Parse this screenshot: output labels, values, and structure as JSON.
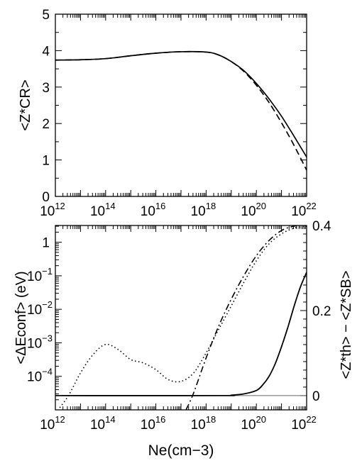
{
  "chart_data": [
    {
      "type": "line",
      "panel": "top",
      "ylabel": "<Z*CR>",
      "ylim": [
        0,
        5
      ],
      "yticks": [
        "0",
        "1",
        "2",
        "3",
        "4",
        "5"
      ],
      "xscale": "log",
      "xlim_exp": [
        12,
        22
      ],
      "xticks": [
        "10",
        "10",
        "10",
        "10",
        "10",
        "10"
      ],
      "xtick_exponents": [
        "12",
        "14",
        "16",
        "18",
        "20",
        "22"
      ],
      "series": [
        {
          "style": "solid",
          "x_exp": [
            12,
            13,
            14,
            15,
            16,
            17,
            18,
            18.5,
            19,
            19.5,
            20,
            20.5,
            21,
            21.5,
            22
          ],
          "y": [
            3.74,
            3.75,
            3.78,
            3.86,
            3.93,
            3.97,
            3.96,
            3.88,
            3.7,
            3.45,
            3.1,
            2.68,
            2.2,
            1.65,
            1.08
          ]
        },
        {
          "style": "dashed",
          "x_exp": [
            12,
            13,
            14,
            15,
            16,
            17,
            18,
            18.5,
            19,
            19.5,
            20,
            20.5,
            21,
            21.5,
            22
          ],
          "y": [
            3.74,
            3.75,
            3.78,
            3.86,
            3.93,
            3.97,
            3.96,
            3.88,
            3.7,
            3.43,
            3.05,
            2.58,
            2.02,
            1.4,
            0.72
          ]
        }
      ]
    },
    {
      "type": "line",
      "panel": "bottom",
      "ylabel": "<ΔEconf> (eV)",
      "ylabel_right": "<Z*th> − <Z*SB>",
      "xlabel": "Ne(cm−3)",
      "xscale": "log",
      "xlim_exp": [
        12,
        22
      ],
      "xticks": [
        "10",
        "10",
        "10",
        "10",
        "10",
        "10"
      ],
      "xtick_exponents": [
        "12",
        "14",
        "16",
        "18",
        "20",
        "22"
      ],
      "yscale": "log",
      "ylim_exp": [
        -5,
        0.5
      ],
      "yticks_left": [
        "10",
        "10",
        "10",
        "10",
        "1"
      ],
      "ytick_left_exponents": [
        "−4",
        "−3",
        "−2",
        "−1",
        ""
      ],
      "ylim_right": [
        -0.0335,
        0.4
      ],
      "yticks_right": [
        "0",
        "0.2",
        "0.4"
      ],
      "series": [
        {
          "style": "solid",
          "axis": "right",
          "x_exp": [
            12,
            18.5,
            19,
            19.5,
            20,
            20.25,
            20.5,
            20.75,
            21,
            21.25,
            21.5,
            21.75,
            22
          ],
          "y": [
            0,
            0,
            0.001,
            0.004,
            0.012,
            0.025,
            0.045,
            0.075,
            0.115,
            0.16,
            0.21,
            0.255,
            0.29
          ]
        },
        {
          "style": "dotted",
          "axis": "left",
          "x_exp": [
            12,
            12.5,
            13,
            13.5,
            14,
            14.5,
            15,
            15.5,
            16,
            16.5,
            17,
            17.5,
            18,
            18.5,
            19,
            19.5,
            20,
            20.5,
            21,
            21.5,
            22
          ],
          "y_exp": [
            -5.1,
            -4.6,
            -3.9,
            -3.35,
            -3.05,
            -3.2,
            -3.5,
            -3.6,
            -3.8,
            -4.1,
            -4.15,
            -3.9,
            -3.3,
            -2.6,
            -1.9,
            -1.2,
            -0.55,
            -0.05,
            0.25,
            0.42,
            0.48
          ]
        },
        {
          "style": "dashdot",
          "axis": "left",
          "x_exp": [
            17.2,
            17.5,
            18,
            18.5,
            19,
            19.5,
            20,
            20.5,
            21,
            21.5,
            22
          ],
          "y_exp": [
            -5.0,
            -4.5,
            -3.45,
            -2.5,
            -1.7,
            -1.0,
            -0.4,
            0.05,
            0.35,
            0.48,
            0.52
          ]
        }
      ]
    }
  ]
}
